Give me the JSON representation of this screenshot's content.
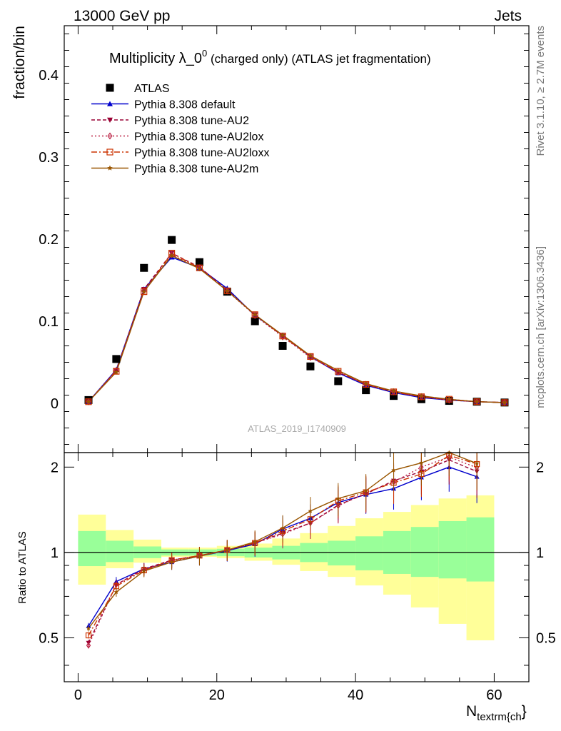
{
  "header": {
    "left": "13000 GeV pp",
    "right": "Jets"
  },
  "side": {
    "top": "Rivet 3.1.10, ≥ 2.7M events",
    "bottom": "mcplots.cern.ch [arXiv:1306.3436]"
  },
  "chart_data": {
    "type": "line",
    "title": "Multiplicity λ_0⁰ (charged only) (ATLAS jet fragmentation)",
    "title_main": "Multiplicity λ_0",
    "title_sup": "0",
    "title_rest": " (charged only) (ATLAS jet fragmentation)",
    "watermark": "ATLAS_2019_I1740909",
    "xlabel_main": "N",
    "xlabel_sub": "textrm{ch",
    "xlabel_tail": "}",
    "ylabel": "fraction/bin",
    "ratio_ylabel": "Ratio to ATLAS",
    "xlim": [
      -2,
      65
    ],
    "ylim": [
      -0.06,
      0.46
    ],
    "ratio_ylim": [
      0.35,
      2.25
    ],
    "xticks": [
      0,
      20,
      40,
      60
    ],
    "yticks": [
      0,
      0.1,
      0.2,
      0.3,
      0.4
    ],
    "ytick_labels": [
      "0",
      "0.1",
      "0.2",
      "0.3",
      "0.4"
    ],
    "ratio_yticks": [
      0.5,
      1,
      2
    ],
    "ratio_ytick_labels": [
      "0.5",
      "1",
      "2"
    ],
    "x": [
      1.5,
      5.5,
      9.5,
      13.5,
      17.5,
      21.5,
      25.5,
      29.5,
      33.5,
      37.5,
      41.5,
      45.5,
      49.5,
      53.5,
      57.5,
      61.5
    ],
    "bin_edges": [
      0,
      4,
      8,
      12,
      16,
      20,
      24,
      28,
      32,
      36,
      40,
      44,
      48,
      52,
      56,
      60
    ],
    "band_inner": [
      [
        0.895,
        1.19
      ],
      [
        0.925,
        1.1
      ],
      [
        0.955,
        1.05
      ],
      [
        0.975,
        1.025
      ],
      [
        0.975,
        1.025
      ],
      [
        0.97,
        1.03
      ],
      [
        0.96,
        1.04
      ],
      [
        0.945,
        1.055
      ],
      [
        0.925,
        1.08
      ],
      [
        0.9,
        1.1
      ],
      [
        0.865,
        1.14
      ],
      [
        0.84,
        1.19
      ],
      [
        0.82,
        1.23
      ],
      [
        0.81,
        1.29
      ],
      [
        0.79,
        1.33
      ]
    ],
    "band_outer": [
      [
        0.77,
        1.36
      ],
      [
        0.88,
        1.2
      ],
      [
        0.92,
        1.11
      ],
      [
        0.965,
        1.04
      ],
      [
        0.965,
        1.04
      ],
      [
        0.955,
        1.055
      ],
      [
        0.935,
        1.075
      ],
      [
        0.905,
        1.12
      ],
      [
        0.86,
        1.17
      ],
      [
        0.82,
        1.24
      ],
      [
        0.765,
        1.32
      ],
      [
        0.71,
        1.39
      ],
      [
        0.64,
        1.47
      ],
      [
        0.56,
        1.55
      ],
      [
        0.49,
        1.59
      ]
    ],
    "series": [
      {
        "name": "ATLAS",
        "color": "#000000",
        "marker": "square",
        "values": [
          0.004,
          0.054,
          0.165,
          0.199,
          0.172,
          0.136,
          0.1,
          0.07,
          0.045,
          0.027,
          0.016,
          0.009,
          0.005,
          0.003,
          0.002,
          0.001
        ]
      },
      {
        "name": "Pythia 8.308 default",
        "color": "#0000cc",
        "dash": "",
        "marker": "triangle-up",
        "values": [
          0.002,
          0.041,
          0.139,
          0.178,
          0.165,
          0.14,
          0.107,
          0.083,
          0.057,
          0.037,
          0.022,
          0.013,
          0.007,
          0.004,
          0.002,
          0.001
        ],
        "ratio": [
          0.55,
          0.79,
          0.875,
          0.925,
          0.97,
          1.015,
          1.07,
          1.21,
          1.32,
          1.5,
          1.6,
          1.68,
          1.84,
          2.0,
          1.85
        ]
      },
      {
        "name": "Pythia 8.308 tune-AU2",
        "color": "#990033",
        "dash": "5,3",
        "marker": "triangle-down",
        "values": [
          0.002,
          0.04,
          0.139,
          0.183,
          0.166,
          0.138,
          0.108,
          0.082,
          0.057,
          0.038,
          0.023,
          0.014,
          0.008,
          0.004,
          0.002,
          0.001
        ],
        "ratio": [
          0.48,
          0.77,
          0.875,
          0.94,
          0.975,
          1.02,
          1.08,
          1.17,
          1.27,
          1.47,
          1.61,
          1.79,
          1.93,
          2.12,
          1.93
        ]
      },
      {
        "name": "Pythia 8.308 tune-AU2lox",
        "color": "#bb2244",
        "dash": "2,3",
        "marker": "diamond-open",
        "values": [
          0.002,
          0.04,
          0.137,
          0.181,
          0.165,
          0.137,
          0.107,
          0.081,
          0.056,
          0.038,
          0.023,
          0.014,
          0.008,
          0.004,
          0.002,
          0.001
        ],
        "ratio": [
          0.47,
          0.77,
          0.87,
          0.935,
          0.975,
          1.02,
          1.08,
          1.16,
          1.27,
          1.46,
          1.62,
          1.77,
          2.0,
          2.17,
          1.99
        ]
      },
      {
        "name": "Pythia 8.308 tune-AU2loxx",
        "color": "#cc3300",
        "dash": "8,3,2,3",
        "marker": "square-open",
        "values": [
          0.002,
          0.039,
          0.136,
          0.183,
          0.165,
          0.137,
          0.108,
          0.082,
          0.057,
          0.039,
          0.023,
          0.014,
          0.008,
          0.005,
          0.002,
          0.001
        ],
        "ratio": [
          0.51,
          0.76,
          0.865,
          0.94,
          0.975,
          1.02,
          1.08,
          1.19,
          1.31,
          1.52,
          1.63,
          1.76,
          1.89,
          2.2,
          2.05
        ]
      },
      {
        "name": "Pythia 8.308 tune-AU2m",
        "color": "#995500",
        "dash": "",
        "marker": "star",
        "values": [
          0.002,
          0.038,
          0.136,
          0.18,
          0.164,
          0.137,
          0.108,
          0.083,
          0.058,
          0.04,
          0.024,
          0.015,
          0.009,
          0.005,
          0.002,
          0.001
        ],
        "ratio": [
          0.54,
          0.725,
          0.86,
          0.925,
          0.97,
          1.02,
          1.09,
          1.22,
          1.4,
          1.55,
          1.65,
          1.95,
          2.07,
          2.27,
          2.06
        ]
      }
    ]
  }
}
